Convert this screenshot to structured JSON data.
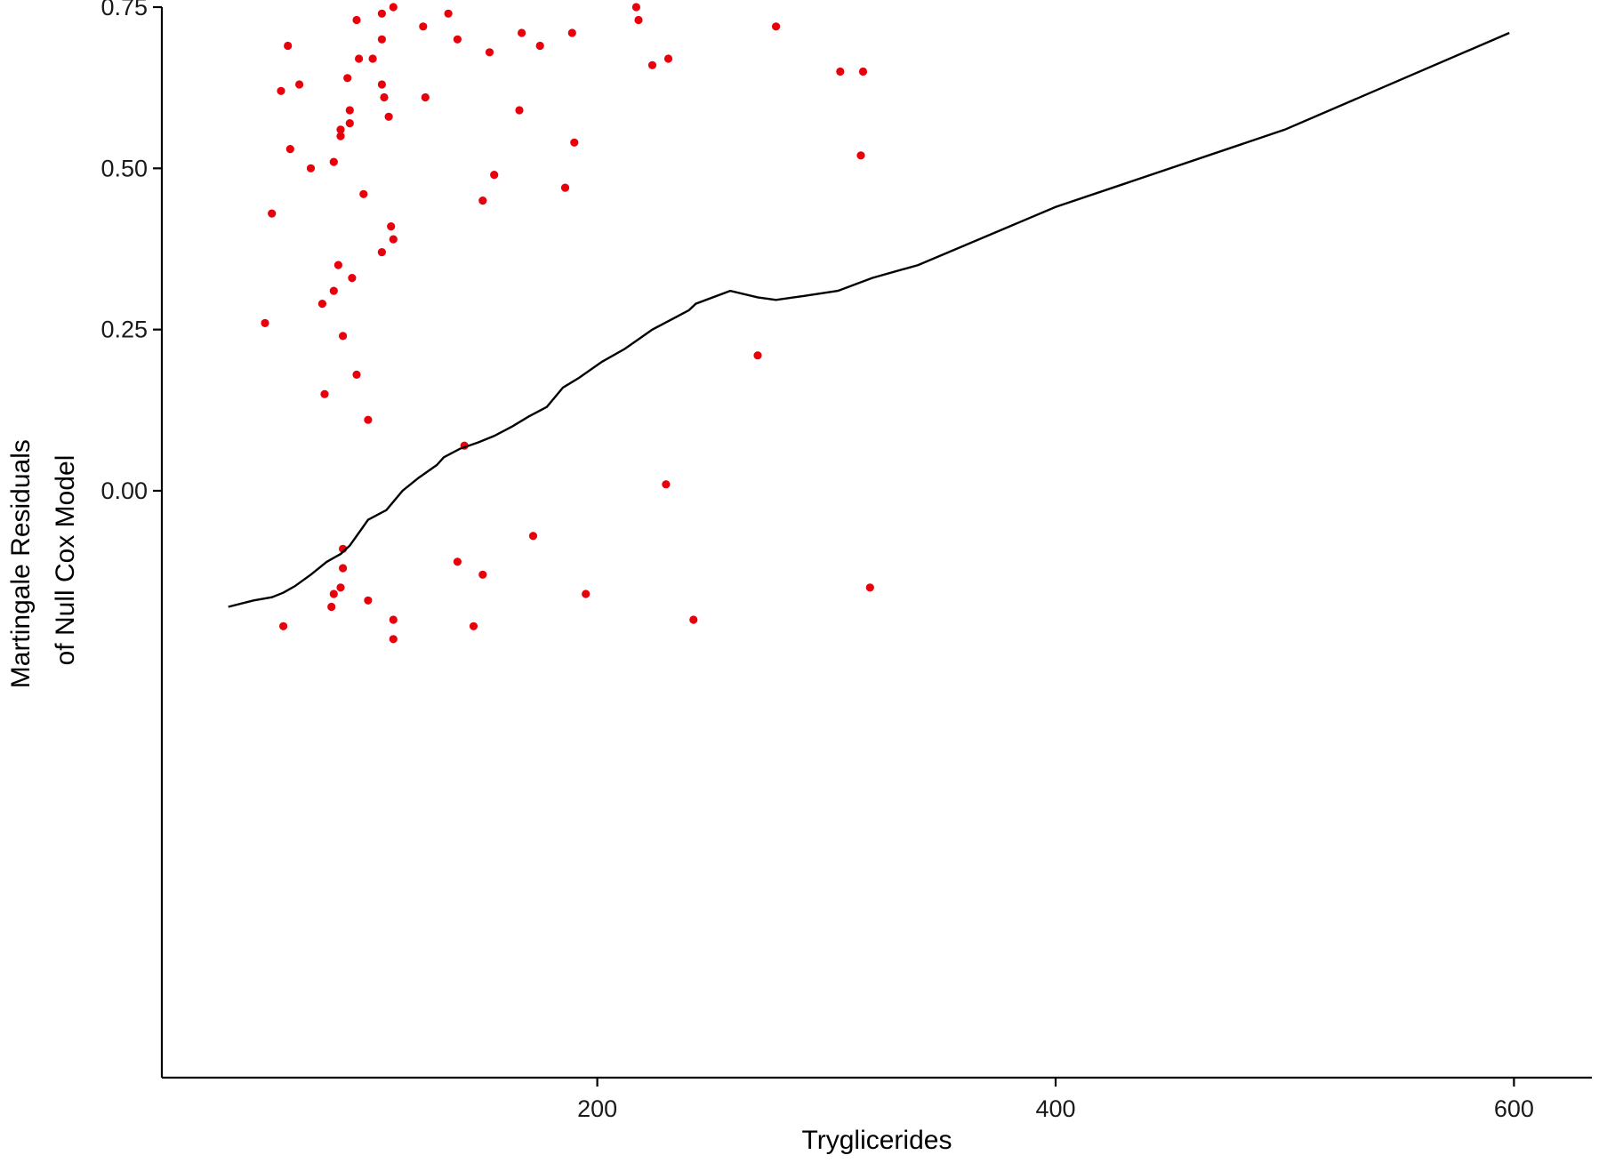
{
  "chart_data": {
    "type": "scatter",
    "title": "",
    "xlabel": "Tryglicerides",
    "ylabel_lines": [
      "Martingale Residuals",
      "of Null Cox Model"
    ],
    "xlim": [
      10,
      634
    ],
    "ylim": [
      -0.91,
      0.75
    ],
    "x_ticks": [
      200,
      400,
      600
    ],
    "y_ticks": [
      0.0,
      0.25,
      0.5,
      0.75
    ],
    "x_tick_labels": [
      "200",
      "400",
      "600"
    ],
    "y_tick_labels": [
      "0.00",
      "0.25",
      "0.50",
      "0.75"
    ],
    "grid": false,
    "legend": "none",
    "point_color": "#e8000b",
    "line_color": "#000000",
    "points": [
      {
        "x": 55,
        "y": 0.26
      },
      {
        "x": 58,
        "y": 0.43
      },
      {
        "x": 62,
        "y": 0.62
      },
      {
        "x": 65,
        "y": 0.69
      },
      {
        "x": 66,
        "y": 0.53
      },
      {
        "x": 70,
        "y": 0.63
      },
      {
        "x": 75,
        "y": 0.5
      },
      {
        "x": 80,
        "y": 0.29
      },
      {
        "x": 81,
        "y": 0.15
      },
      {
        "x": 85,
        "y": 0.51
      },
      {
        "x": 85,
        "y": 0.31
      },
      {
        "x": 87,
        "y": 0.35
      },
      {
        "x": 88,
        "y": 0.56
      },
      {
        "x": 88,
        "y": 0.55
      },
      {
        "x": 89,
        "y": 0.24
      },
      {
        "x": 91,
        "y": 0.64
      },
      {
        "x": 92,
        "y": 0.59
      },
      {
        "x": 92,
        "y": 0.57
      },
      {
        "x": 93,
        "y": 0.33
      },
      {
        "x": 95,
        "y": 0.18
      },
      {
        "x": 95,
        "y": 0.73
      },
      {
        "x": 96,
        "y": 0.67
      },
      {
        "x": 98,
        "y": 0.46
      },
      {
        "x": 100,
        "y": 0.11
      },
      {
        "x": 102,
        "y": 0.67
      },
      {
        "x": 106,
        "y": 0.74
      },
      {
        "x": 106,
        "y": 0.7
      },
      {
        "x": 106,
        "y": 0.63
      },
      {
        "x": 106,
        "y": 0.37
      },
      {
        "x": 107,
        "y": 0.61
      },
      {
        "x": 109,
        "y": 0.58
      },
      {
        "x": 110,
        "y": 0.41
      },
      {
        "x": 111,
        "y": 0.39
      },
      {
        "x": 111,
        "y": 0.75
      },
      {
        "x": 124,
        "y": 0.72
      },
      {
        "x": 125,
        "y": 0.61
      },
      {
        "x": 135,
        "y": 0.74
      },
      {
        "x": 139,
        "y": 0.7
      },
      {
        "x": 142,
        "y": 0.07
      },
      {
        "x": 150,
        "y": 0.45
      },
      {
        "x": 153,
        "y": 0.68
      },
      {
        "x": 155,
        "y": 0.49
      },
      {
        "x": 166,
        "y": 0.59
      },
      {
        "x": 167,
        "y": 0.71
      },
      {
        "x": 175,
        "y": 0.69
      },
      {
        "x": 186,
        "y": 0.47
      },
      {
        "x": 189,
        "y": 0.71
      },
      {
        "x": 190,
        "y": 0.54
      },
      {
        "x": 217,
        "y": 0.75
      },
      {
        "x": 218,
        "y": 0.73
      },
      {
        "x": 224,
        "y": 0.66
      },
      {
        "x": 230,
        "y": 0.01
      },
      {
        "x": 231,
        "y": 0.67
      },
      {
        "x": 270,
        "y": 0.21
      },
      {
        "x": 278,
        "y": 0.72
      },
      {
        "x": 306,
        "y": 0.65
      },
      {
        "x": 315,
        "y": 0.52
      },
      {
        "x": 316,
        "y": 0.65
      },
      {
        "x": 89,
        "y": -0.09
      },
      {
        "x": 89,
        "y": -0.12
      },
      {
        "x": 88,
        "y": -0.15
      },
      {
        "x": 85,
        "y": -0.16
      },
      {
        "x": 84,
        "y": -0.18
      },
      {
        "x": 100,
        "y": -0.17
      },
      {
        "x": 111,
        "y": -0.2
      },
      {
        "x": 111,
        "y": -0.23
      },
      {
        "x": 63,
        "y": -0.21
      },
      {
        "x": 139,
        "y": -0.11
      },
      {
        "x": 150,
        "y": -0.13
      },
      {
        "x": 146,
        "y": -0.21
      },
      {
        "x": 172,
        "y": -0.07
      },
      {
        "x": 195,
        "y": -0.16
      },
      {
        "x": 242,
        "y": -0.2
      },
      {
        "x": 319,
        "y": -0.15
      }
    ],
    "smooth_line": {
      "x": [
        39,
        50,
        58,
        63,
        68,
        75,
        82,
        88,
        92,
        97,
        100,
        108,
        115,
        122,
        130,
        133,
        140,
        148,
        155,
        163,
        170,
        178,
        185,
        192,
        202,
        212,
        224,
        240,
        243,
        258,
        270,
        278,
        290,
        305,
        320,
        340,
        400,
        500,
        598
      ],
      "y": [
        -0.18,
        -0.17,
        -0.165,
        -0.158,
        -0.148,
        -0.13,
        -0.11,
        -0.098,
        -0.085,
        -0.06,
        -0.045,
        -0.03,
        0.0,
        0.02,
        0.04,
        0.052,
        0.065,
        0.075,
        0.085,
        0.1,
        0.115,
        0.13,
        0.16,
        0.175,
        0.2,
        0.22,
        0.25,
        0.28,
        0.29,
        0.31,
        0.3,
        0.296,
        0.302,
        0.31,
        0.33,
        0.35,
        0.44,
        0.56,
        0.71
      ]
    }
  }
}
